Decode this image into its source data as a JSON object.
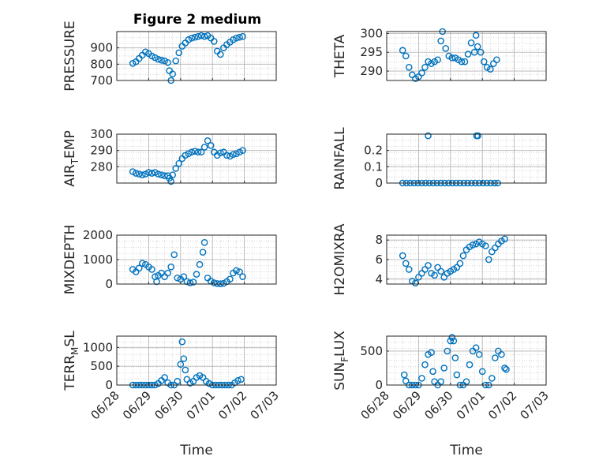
{
  "figure": {
    "title": "Figure 2 medium"
  },
  "colors": {
    "marker": "#0072BD",
    "axis": "#262626",
    "grid": "#c8c8c8"
  },
  "chart_data": [
    {
      "type": "scatter",
      "title": "Figure 2 medium",
      "ylabel": "PRESSURE",
      "ylabel_sub": "",
      "xlabel": "",
      "ylim": [
        700,
        1000
      ],
      "yticks": [
        700,
        800,
        900
      ],
      "x_start": "06/28",
      "x_range": [
        0,
        5
      ],
      "xticks": [
        "06/28",
        "06/29",
        "06/30",
        "07/01",
        "07/02",
        "07/03"
      ],
      "show_xticklabels": false,
      "grid": true,
      "points": [
        [
          0.5,
          805
        ],
        [
          0.6,
          815
        ],
        [
          0.7,
          835
        ],
        [
          0.8,
          855
        ],
        [
          0.9,
          875
        ],
        [
          1.0,
          865
        ],
        [
          1.1,
          850
        ],
        [
          1.2,
          840
        ],
        [
          1.3,
          830
        ],
        [
          1.4,
          825
        ],
        [
          1.5,
          820
        ],
        [
          1.6,
          810
        ],
        [
          1.65,
          760
        ],
        [
          1.7,
          700
        ],
        [
          1.75,
          740
        ],
        [
          1.85,
          820
        ],
        [
          1.95,
          870
        ],
        [
          2.05,
          910
        ],
        [
          2.15,
          930
        ],
        [
          2.25,
          950
        ],
        [
          2.35,
          960
        ],
        [
          2.45,
          965
        ],
        [
          2.55,
          970
        ],
        [
          2.65,
          975
        ],
        [
          2.75,
          970
        ],
        [
          2.85,
          975
        ],
        [
          2.95,
          960
        ],
        [
          3.05,
          940
        ],
        [
          3.15,
          880
        ],
        [
          3.25,
          860
        ],
        [
          3.35,
          900
        ],
        [
          3.45,
          920
        ],
        [
          3.55,
          935
        ],
        [
          3.65,
          950
        ],
        [
          3.75,
          960
        ],
        [
          3.85,
          965
        ],
        [
          3.95,
          970
        ]
      ]
    },
    {
      "type": "scatter",
      "title": "",
      "ylabel": "THETA",
      "ylabel_sub": "",
      "xlabel": "",
      "ylim": [
        287.5,
        300.5
      ],
      "yticks": [
        290,
        295,
        300
      ],
      "x_start": "06/28",
      "x_range": [
        0,
        5
      ],
      "xticks": [
        "06/28",
        "06/29",
        "06/30",
        "07/01",
        "07/02",
        "07/03"
      ],
      "show_xticklabels": false,
      "grid": true,
      "points": [
        [
          0.5,
          295.5
        ],
        [
          0.6,
          294
        ],
        [
          0.7,
          291
        ],
        [
          0.8,
          289
        ],
        [
          0.9,
          288
        ],
        [
          1.0,
          288.5
        ],
        [
          1.1,
          289.5
        ],
        [
          1.2,
          291
        ],
        [
          1.3,
          292.5
        ],
        [
          1.4,
          292
        ],
        [
          1.5,
          292.5
        ],
        [
          1.6,
          293
        ],
        [
          1.7,
          298
        ],
        [
          1.75,
          300.5
        ],
        [
          1.85,
          296
        ],
        [
          1.95,
          294
        ],
        [
          2.05,
          293.5
        ],
        [
          2.15,
          293.5
        ],
        [
          2.25,
          293
        ],
        [
          2.35,
          292.5
        ],
        [
          2.45,
          292.5
        ],
        [
          2.55,
          294.5
        ],
        [
          2.65,
          297.5
        ],
        [
          2.75,
          295
        ],
        [
          2.8,
          299.5
        ],
        [
          2.85,
          296.5
        ],
        [
          2.95,
          295
        ],
        [
          3.05,
          292.5
        ],
        [
          3.15,
          291
        ],
        [
          3.25,
          290.5
        ],
        [
          3.35,
          292
        ],
        [
          3.45,
          293
        ]
      ]
    },
    {
      "type": "scatter",
      "title": "",
      "ylabel": "AIR",
      "ylabel_sub": "T",
      "ylabel_after": "EMP",
      "xlabel": "",
      "ylim": [
        270,
        300
      ],
      "yticks": [
        280,
        290,
        300
      ],
      "x_start": "06/28",
      "x_range": [
        0,
        5
      ],
      "xticks": [
        "06/28",
        "06/29",
        "06/30",
        "07/01",
        "07/02",
        "07/03"
      ],
      "show_xticklabels": false,
      "grid": true,
      "points": [
        [
          0.5,
          277
        ],
        [
          0.6,
          276
        ],
        [
          0.7,
          275.5
        ],
        [
          0.8,
          275
        ],
        [
          0.9,
          275.5
        ],
        [
          1.0,
          276.5
        ],
        [
          1.1,
          276
        ],
        [
          1.2,
          276.5
        ],
        [
          1.3,
          275.5
        ],
        [
          1.4,
          275
        ],
        [
          1.5,
          274.5
        ],
        [
          1.6,
          274.5
        ],
        [
          1.65,
          273
        ],
        [
          1.7,
          271
        ],
        [
          1.75,
          275
        ],
        [
          1.85,
          279
        ],
        [
          1.95,
          282
        ],
        [
          2.05,
          285
        ],
        [
          2.15,
          287
        ],
        [
          2.25,
          288
        ],
        [
          2.35,
          289
        ],
        [
          2.45,
          289.5
        ],
        [
          2.55,
          289
        ],
        [
          2.65,
          289
        ],
        [
          2.75,
          292
        ],
        [
          2.85,
          296
        ],
        [
          2.95,
          293
        ],
        [
          3.05,
          289
        ],
        [
          3.15,
          287
        ],
        [
          3.25,
          288.5
        ],
        [
          3.35,
          289
        ],
        [
          3.45,
          287
        ],
        [
          3.55,
          286.5
        ],
        [
          3.65,
          287.5
        ],
        [
          3.75,
          288
        ],
        [
          3.85,
          289
        ],
        [
          3.95,
          290
        ]
      ]
    },
    {
      "type": "scatter",
      "title": "",
      "ylabel": "RAINFALL",
      "ylabel_sub": "",
      "xlabel": "",
      "ylim": [
        0,
        0.3
      ],
      "yticks": [
        0,
        0.1,
        0.2
      ],
      "x_start": "06/28",
      "x_range": [
        0,
        5
      ],
      "xticks": [
        "06/28",
        "06/29",
        "06/30",
        "07/01",
        "07/02",
        "07/03"
      ],
      "show_xticklabels": false,
      "grid": true,
      "points": [
        [
          0.5,
          0
        ],
        [
          0.62,
          0
        ],
        [
          0.74,
          0
        ],
        [
          0.86,
          0
        ],
        [
          0.98,
          0
        ],
        [
          1.1,
          0
        ],
        [
          1.22,
          0
        ],
        [
          1.3,
          0.29
        ],
        [
          1.34,
          0
        ],
        [
          1.46,
          0
        ],
        [
          1.58,
          0
        ],
        [
          1.7,
          0
        ],
        [
          1.82,
          0
        ],
        [
          1.94,
          0
        ],
        [
          2.06,
          0
        ],
        [
          2.18,
          0
        ],
        [
          2.3,
          0
        ],
        [
          2.42,
          0
        ],
        [
          2.54,
          0
        ],
        [
          2.66,
          0
        ],
        [
          2.78,
          0
        ],
        [
          2.82,
          0.29
        ],
        [
          2.86,
          0.29
        ],
        [
          2.9,
          0
        ],
        [
          3.02,
          0
        ],
        [
          3.14,
          0
        ],
        [
          3.26,
          0
        ],
        [
          3.38,
          0
        ],
        [
          3.48,
          0
        ]
      ]
    },
    {
      "type": "scatter",
      "title": "",
      "ylabel": "MIXDEPTH",
      "ylabel_sub": "",
      "xlabel": "",
      "ylim": [
        0,
        2000
      ],
      "yticks": [
        0,
        1000,
        2000
      ],
      "x_start": "06/28",
      "x_range": [
        0,
        5
      ],
      "xticks": [
        "06/28",
        "06/29",
        "06/30",
        "07/01",
        "07/02",
        "07/03"
      ],
      "show_xticklabels": false,
      "grid": true,
      "points": [
        [
          0.5,
          600
        ],
        [
          0.6,
          500
        ],
        [
          0.7,
          650
        ],
        [
          0.8,
          850
        ],
        [
          0.9,
          800
        ],
        [
          1.0,
          700
        ],
        [
          1.1,
          600
        ],
        [
          1.2,
          300
        ],
        [
          1.25,
          100
        ],
        [
          1.3,
          350
        ],
        [
          1.4,
          450
        ],
        [
          1.5,
          300
        ],
        [
          1.6,
          450
        ],
        [
          1.7,
          700
        ],
        [
          1.8,
          1200
        ],
        [
          1.9,
          250
        ],
        [
          2.0,
          200
        ],
        [
          2.1,
          300
        ],
        [
          2.2,
          100
        ],
        [
          2.3,
          50
        ],
        [
          2.4,
          80
        ],
        [
          2.5,
          400
        ],
        [
          2.6,
          800
        ],
        [
          2.7,
          1300
        ],
        [
          2.75,
          1700
        ],
        [
          2.85,
          250
        ],
        [
          2.95,
          120
        ],
        [
          3.05,
          50
        ],
        [
          3.15,
          20
        ],
        [
          3.25,
          10
        ],
        [
          3.35,
          30
        ],
        [
          3.45,
          100
        ],
        [
          3.55,
          200
        ],
        [
          3.65,
          450
        ],
        [
          3.75,
          550
        ],
        [
          3.85,
          500
        ],
        [
          3.95,
          300
        ]
      ]
    },
    {
      "type": "scatter",
      "title": "",
      "ylabel": "H2OMIXRA",
      "ylabel_sub": "",
      "xlabel": "",
      "ylim": [
        3.5,
        8.5
      ],
      "yticks": [
        4,
        6,
        8
      ],
      "x_start": "06/28",
      "x_range": [
        0,
        5
      ],
      "xticks": [
        "06/28",
        "06/29",
        "06/30",
        "07/01",
        "07/02",
        "07/03"
      ],
      "show_xticklabels": false,
      "grid": true,
      "points": [
        [
          0.5,
          6.4
        ],
        [
          0.6,
          5.6
        ],
        [
          0.7,
          5.0
        ],
        [
          0.8,
          3.8
        ],
        [
          0.9,
          3.6
        ],
        [
          1.0,
          4.2
        ],
        [
          1.1,
          4.6
        ],
        [
          1.2,
          5.0
        ],
        [
          1.3,
          5.4
        ],
        [
          1.4,
          4.6
        ],
        [
          1.5,
          4.4
        ],
        [
          1.6,
          5.2
        ],
        [
          1.7,
          4.8
        ],
        [
          1.8,
          4.2
        ],
        [
          1.9,
          4.6
        ],
        [
          2.0,
          4.8
        ],
        [
          2.1,
          5.0
        ],
        [
          2.2,
          5.2
        ],
        [
          2.3,
          5.6
        ],
        [
          2.4,
          6.4
        ],
        [
          2.5,
          7.0
        ],
        [
          2.6,
          7.3
        ],
        [
          2.7,
          7.5
        ],
        [
          2.8,
          7.6
        ],
        [
          2.9,
          7.8
        ],
        [
          3.0,
          7.6
        ],
        [
          3.1,
          7.4
        ],
        [
          3.2,
          6.0
        ],
        [
          3.3,
          6.8
        ],
        [
          3.4,
          7.2
        ],
        [
          3.5,
          7.6
        ],
        [
          3.6,
          7.9
        ],
        [
          3.7,
          8.1
        ]
      ]
    },
    {
      "type": "scatter",
      "title": "",
      "ylabel": "TERR",
      "ylabel_sub": "M",
      "ylabel_after": "SL",
      "xlabel": "Time",
      "ylim": [
        0,
        1300
      ],
      "yticks": [
        0,
        500,
        1000
      ],
      "x_start": "06/28",
      "x_range": [
        0,
        5
      ],
      "xticks": [
        "06/28",
        "06/29",
        "06/30",
        "07/01",
        "07/02",
        "07/03"
      ],
      "show_xticklabels": true,
      "grid": true,
      "points": [
        [
          0.5,
          0
        ],
        [
          0.6,
          0
        ],
        [
          0.7,
          0
        ],
        [
          0.8,
          0
        ],
        [
          0.9,
          0
        ],
        [
          1.0,
          0
        ],
        [
          1.1,
          0
        ],
        [
          1.2,
          0
        ],
        [
          1.3,
          40
        ],
        [
          1.4,
          120
        ],
        [
          1.5,
          200
        ],
        [
          1.6,
          60
        ],
        [
          1.7,
          0
        ],
        [
          1.8,
          0
        ],
        [
          1.9,
          100
        ],
        [
          2.0,
          550
        ],
        [
          2.05,
          1150
        ],
        [
          2.1,
          700
        ],
        [
          2.15,
          400
        ],
        [
          2.2,
          150
        ],
        [
          2.3,
          50
        ],
        [
          2.4,
          100
        ],
        [
          2.5,
          200
        ],
        [
          2.6,
          250
        ],
        [
          2.7,
          200
        ],
        [
          2.8,
          100
        ],
        [
          2.9,
          40
        ],
        [
          3.0,
          0
        ],
        [
          3.1,
          0
        ],
        [
          3.2,
          0
        ],
        [
          3.3,
          0
        ],
        [
          3.4,
          0
        ],
        [
          3.5,
          0
        ],
        [
          3.6,
          0
        ],
        [
          3.7,
          60
        ],
        [
          3.8,
          120
        ],
        [
          3.9,
          150
        ]
      ]
    },
    {
      "type": "scatter",
      "title": "",
      "ylabel": "SUN",
      "ylabel_sub": "F",
      "ylabel_after": "LUX",
      "xlabel": "Time",
      "ylim": [
        0,
        720
      ],
      "yticks": [
        0,
        500
      ],
      "x_start": "06/28",
      "x_range": [
        0,
        5
      ],
      "xticks": [
        "06/28",
        "06/29",
        "06/30",
        "07/01",
        "07/02",
        "07/03"
      ],
      "show_xticklabels": true,
      "grid": true,
      "points": [
        [
          0.55,
          150
        ],
        [
          0.6,
          60
        ],
        [
          0.7,
          0
        ],
        [
          0.8,
          0
        ],
        [
          0.9,
          0
        ],
        [
          1.0,
          0
        ],
        [
          1.1,
          100
        ],
        [
          1.2,
          300
        ],
        [
          1.3,
          450
        ],
        [
          1.4,
          480
        ],
        [
          1.45,
          200
        ],
        [
          1.5,
          50
        ],
        [
          1.6,
          0
        ],
        [
          1.7,
          50
        ],
        [
          1.8,
          250
        ],
        [
          1.9,
          500
        ],
        [
          2.0,
          650
        ],
        [
          2.05,
          700
        ],
        [
          2.1,
          650
        ],
        [
          2.15,
          400
        ],
        [
          2.2,
          150
        ],
        [
          2.3,
          0
        ],
        [
          2.4,
          0
        ],
        [
          2.5,
          50
        ],
        [
          2.6,
          300
        ],
        [
          2.7,
          500
        ],
        [
          2.8,
          550
        ],
        [
          2.9,
          450
        ],
        [
          3.0,
          200
        ],
        [
          3.1,
          0
        ],
        [
          3.2,
          0
        ],
        [
          3.3,
          100
        ],
        [
          3.4,
          400
        ],
        [
          3.5,
          500
        ],
        [
          3.6,
          450
        ],
        [
          3.7,
          250
        ],
        [
          3.75,
          230
        ]
      ]
    }
  ]
}
